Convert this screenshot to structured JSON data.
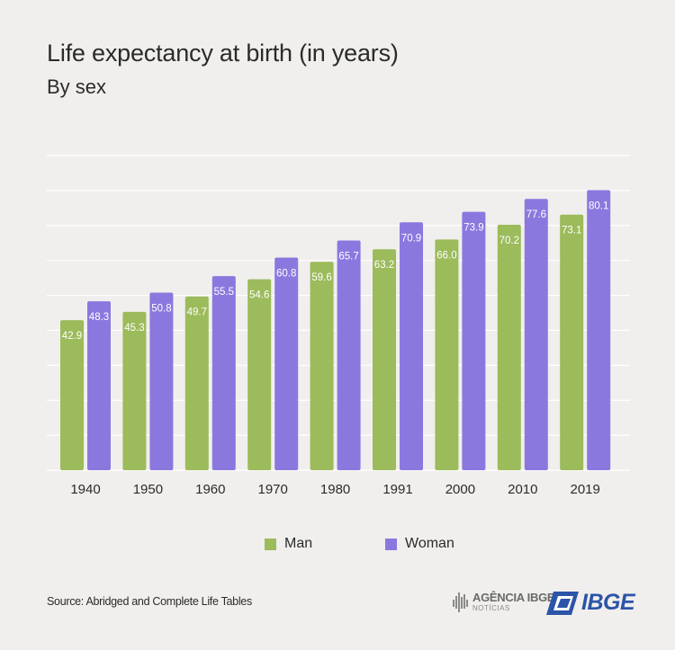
{
  "colors": {
    "man": "#9cbb5b",
    "woman": "#8b78df",
    "grid": "#ffffff",
    "background": "#f0efed"
  },
  "chart_data": {
    "type": "bar",
    "title": "Life expectancy at birth (in years)",
    "subtitle": "By sex",
    "categories": [
      "1940",
      "1950",
      "1960",
      "1970",
      "1980",
      "1991",
      "2000",
      "2010",
      "2019"
    ],
    "series": [
      {
        "name": "Man",
        "values": [
          42.9,
          45.3,
          49.7,
          54.6,
          59.6,
          63.2,
          66.0,
          70.2,
          73.1
        ]
      },
      {
        "name": "Woman",
        "values": [
          48.3,
          50.8,
          55.5,
          60.8,
          65.7,
          70.9,
          73.9,
          77.6,
          80.1
        ]
      }
    ],
    "value_labels": {
      "Man": [
        "42.9",
        "45.3",
        "49.7",
        "54.6",
        "59.6",
        "63.2",
        "66.0",
        "70.2",
        "73.1"
      ],
      "Woman": [
        "48.3",
        "50.8",
        "55.5",
        "60.8",
        "65.7",
        "70.9",
        "73.9",
        "77.6",
        "80.1"
      ]
    },
    "ylim": [
      0,
      90
    ],
    "y_gridlines": [
      0,
      10,
      20,
      30,
      40,
      50,
      60,
      70,
      80,
      90
    ],
    "grid": true,
    "legend_position": "bottom-center"
  },
  "source": "Source: Abridged and Complete Life Tables",
  "logos": {
    "agencia": {
      "main": "AGÊNCIA IBGE",
      "sub": "NOTÍCIAS",
      "icon": "equalizer-bars-icon"
    },
    "ibge": {
      "word": "IBGE",
      "icon": "ibge-emblem-icon"
    }
  }
}
